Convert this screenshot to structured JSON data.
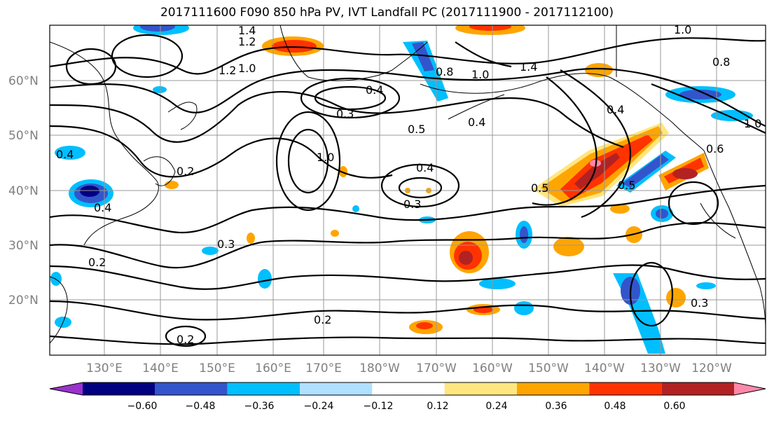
{
  "title": "2017111600 F090 850 hPa PV, IVT Landfall PC (2017111900 - 2017112100)",
  "lat_labels": [
    "60°N",
    "50°N",
    "40°N",
    "30°N",
    "20°N"
  ],
  "lon_labels": [
    "130°E",
    "140°E",
    "150°E",
    "160°E",
    "170°E",
    "180°W",
    "170°W",
    "160°W",
    "150°W",
    "140°W",
    "130°W",
    "120°W"
  ],
  "colorbar": {
    "ticks": [
      "−0.60",
      "−0.48",
      "−0.36",
      "−0.24",
      "−0.12",
      "0.12",
      "0.24",
      "0.36",
      "0.48",
      "0.60"
    ],
    "colors": [
      "#9933cc",
      "#000080",
      "#3355cc",
      "#00bfff",
      "#b0e0ff",
      "#ffffff",
      "#ffe680",
      "#ffa500",
      "#ff3300",
      "#b22222",
      "#ff88aa"
    ]
  },
  "contour_labels": [
    "1.4",
    "1.2",
    "1.0",
    "0.8",
    "1.2",
    "1.0",
    "0.4",
    "0.3",
    "0.8",
    "1.0",
    "1.4",
    "0.4",
    "0.5",
    "0.4",
    "1.0",
    "0.4",
    "0.3",
    "0.5",
    "0.5",
    "0.3",
    "0.2",
    "0.2",
    "0.2",
    "0.3",
    "0.4",
    "0.4",
    "0.2",
    "1.0",
    "0.6"
  ],
  "icons": {
    "map": "north-pacific-map"
  }
}
